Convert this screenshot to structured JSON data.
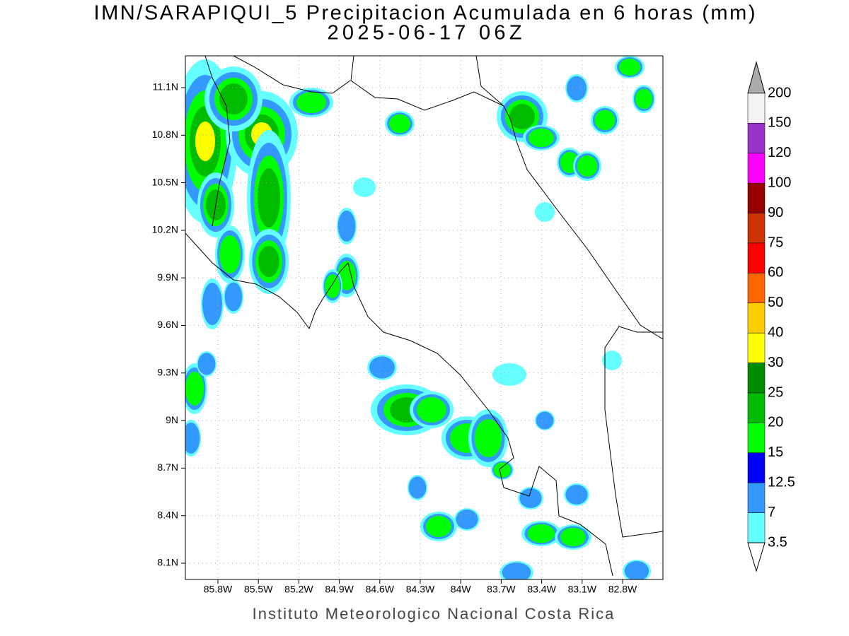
{
  "header": {
    "title": "IMN/SARAPIQUI_5 Precipitacion Acumulada en 6 horas (mm)",
    "subtitle": "2025-06-17 06Z"
  },
  "map": {
    "lat_labels": [
      "11.1N",
      "10.8N",
      "10.5N",
      "10.2N",
      "9.9N",
      "9.6N",
      "9.3N",
      "9N",
      "8.7N",
      "8.4N",
      "8.1N"
    ],
    "lon_labels": [
      "85.8W",
      "85.5W",
      "85.2W",
      "84.9W",
      "84.6W",
      "84.3W",
      "84W",
      "83.7W",
      "83.4W",
      "83.1W",
      "82.8W"
    ]
  },
  "colorbar": {
    "levels": [
      200,
      150,
      120,
      100,
      90,
      75,
      60,
      50,
      40,
      30,
      25,
      20,
      15,
      12.5,
      7,
      3.5
    ],
    "colors": [
      "#f2f2f2",
      "#9933cc",
      "#ff00ff",
      "#990000",
      "#cc3300",
      "#ff0000",
      "#ff6600",
      "#ffcc00",
      "#ffff00",
      "#008c00",
      "#00bb00",
      "#00ff00",
      "#0000ff",
      "#3399ff",
      "#66ffff"
    ],
    "over_color": "#aaaaaa",
    "under_color": "#ffffff"
  },
  "footer": "Instituto Meteorologico Nacional Costa Rica"
}
